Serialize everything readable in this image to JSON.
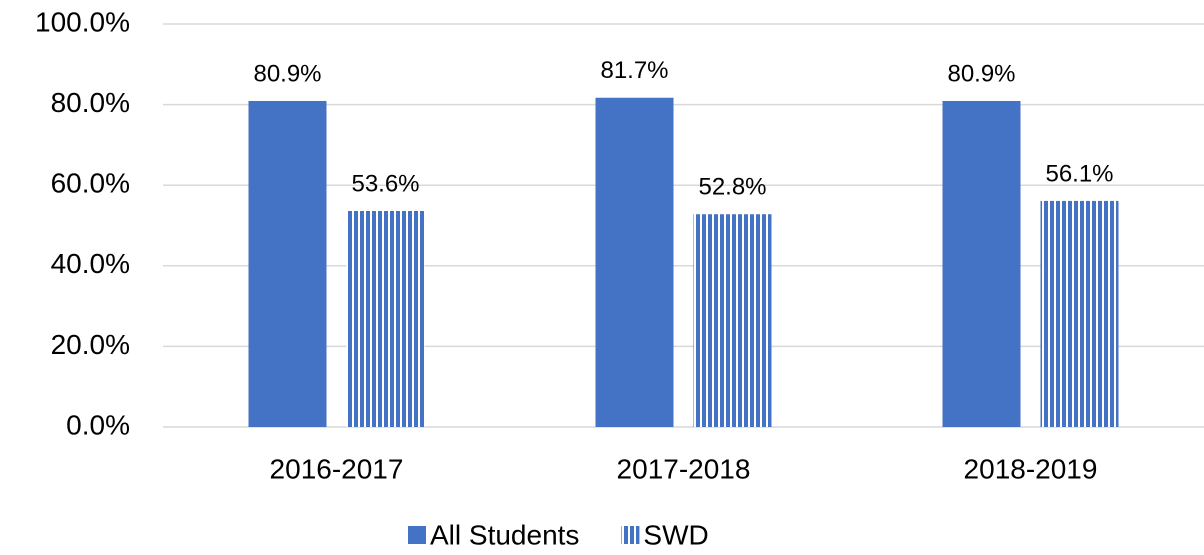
{
  "chart_data": {
    "type": "bar",
    "categories": [
      "2016-2017",
      "2017-2018",
      "2018-2019"
    ],
    "series": [
      {
        "name": "All Students",
        "color": "#4472c4",
        "values": [
          80.9,
          81.7,
          80.9
        ],
        "value_labels": [
          "80.9%",
          "81.7%",
          "80.9%"
        ]
      },
      {
        "name": "SWD",
        "color": "#4472c4",
        "pattern": "vertical-stripes",
        "values": [
          53.6,
          52.8,
          56.1
        ],
        "value_labels": [
          "53.6%",
          "52.8%",
          "56.1%"
        ]
      }
    ],
    "ylim": [
      0,
      100
    ],
    "yticks": [
      {
        "value": 0,
        "label": "0.0%"
      },
      {
        "value": 20,
        "label": "20.0%"
      },
      {
        "value": 40,
        "label": "40.0%"
      },
      {
        "value": 60,
        "label": "60.0%"
      },
      {
        "value": 80,
        "label": "80.0%"
      },
      {
        "value": 100,
        "label": "100.0%"
      }
    ],
    "grid": true,
    "legend": "bottom"
  }
}
